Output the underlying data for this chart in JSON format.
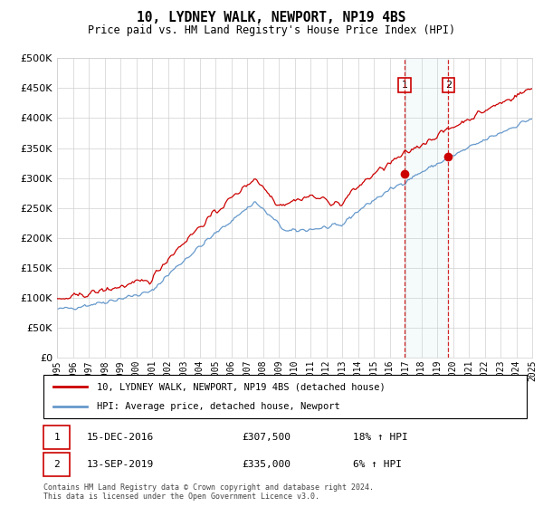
{
  "title": "10, LYDNEY WALK, NEWPORT, NP19 4BS",
  "subtitle": "Price paid vs. HM Land Registry's House Price Index (HPI)",
  "ytick_values": [
    0,
    50000,
    100000,
    150000,
    200000,
    250000,
    300000,
    350000,
    400000,
    450000,
    500000
  ],
  "ylim": [
    0,
    500000
  ],
  "sale1": {
    "date": "15-DEC-2016",
    "price": 307500,
    "label": "1",
    "hpi_pct": "18%"
  },
  "sale2": {
    "date": "13-SEP-2019",
    "price": 335000,
    "label": "2",
    "hpi_pct": "6%"
  },
  "sale1_year": 2016.96,
  "sale2_year": 2019.71,
  "legend_line1": "10, LYDNEY WALK, NEWPORT, NP19 4BS (detached house)",
  "legend_line2": "HPI: Average price, detached house, Newport",
  "footer": "Contains HM Land Registry data © Crown copyright and database right 2024.\nThis data is licensed under the Open Government Licence v3.0.",
  "red_color": "#cc0000",
  "blue_color": "#6699cc",
  "x_start_year": 1995,
  "x_end_year": 2025
}
